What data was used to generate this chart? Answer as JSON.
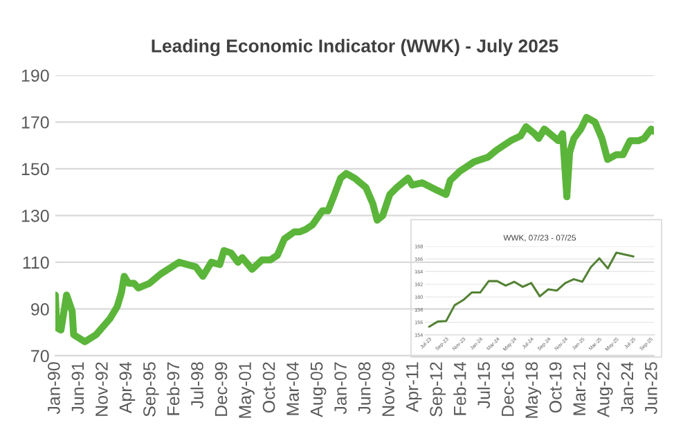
{
  "chart_data": [
    {
      "type": "line",
      "title": "Leading Economic Indicator (WWK) - July 2025",
      "color": "#5bb53a",
      "grid": "y",
      "x": [
        "1990-01",
        "1990-02",
        "1990-05",
        "1990-09",
        "1991-01",
        "1991-02",
        "1991-10",
        "1992-06",
        "1993-04",
        "1993-09",
        "1993-12",
        "1994-02",
        "1994-05",
        "1994-09",
        "1994-12",
        "1995-08",
        "1996-04",
        "1997-05",
        "1998-05",
        "1998-10",
        "1999-04",
        "1999-10",
        "2000-01",
        "2000-06",
        "2000-11",
        "2001-02",
        "2001-09",
        "2002-04",
        "2002-10",
        "2003-03",
        "2003-08",
        "2004-03",
        "2004-07",
        "2004-11",
        "2005-04",
        "2005-11",
        "2006-03",
        "2006-07",
        "2006-12",
        "2007-04",
        "2007-10",
        "2008-06",
        "2008-11",
        "2009-02",
        "2009-06",
        "2009-11",
        "2010-04",
        "2010-12",
        "2011-03",
        "2011-10",
        "2012-08",
        "2013-03",
        "2013-06",
        "2014-01",
        "2014-11",
        "2015-09",
        "2016-03",
        "2017-01",
        "2017-08",
        "2017-12",
        "2018-06",
        "2018-09",
        "2019-01",
        "2019-07",
        "2019-11",
        "2020-02",
        "2020-05",
        "2020-07",
        "2020-10",
        "2021-03",
        "2021-07",
        "2022-01",
        "2022-06",
        "2022-10",
        "2023-04",
        "2023-09",
        "2024-02",
        "2024-08",
        "2024-12",
        "2025-05",
        "2025-07"
      ],
      "values": [
        96,
        82,
        81,
        96,
        89,
        79,
        76,
        79,
        86,
        91,
        97,
        104,
        101,
        101,
        99,
        101,
        105,
        110,
        108,
        104,
        110,
        109,
        115,
        114,
        110,
        112,
        107,
        111,
        111,
        113,
        120,
        123,
        123,
        124,
        126,
        132,
        132,
        138,
        146,
        148,
        146,
        142,
        135,
        128,
        130,
        139,
        142,
        146,
        143,
        144,
        141,
        139,
        145,
        149,
        153,
        155,
        158,
        162,
        164,
        168,
        165,
        163,
        167,
        164,
        162,
        165,
        138,
        157,
        163,
        167,
        172,
        170,
        163,
        154,
        156,
        156,
        162,
        162,
        163,
        167,
        166
      ],
      "xlim": [
        "1990-01",
        "2025-07"
      ],
      "xticks": [
        {
          "value": "1990-01",
          "label": "Jan-90"
        },
        {
          "value": "1991-06",
          "label": "Jun-91"
        },
        {
          "value": "1992-11",
          "label": "Nov-92"
        },
        {
          "value": "1994-04",
          "label": "Apr-94"
        },
        {
          "value": "1995-09",
          "label": "Sep-95"
        },
        {
          "value": "1997-02",
          "label": "Feb-97"
        },
        {
          "value": "1998-07",
          "label": "Jul-98"
        },
        {
          "value": "1999-12",
          "label": "Dec-99"
        },
        {
          "value": "2001-05",
          "label": "May-01"
        },
        {
          "value": "2002-10",
          "label": "Oct-02"
        },
        {
          "value": "2004-03",
          "label": "Mar-04"
        },
        {
          "value": "2005-08",
          "label": "Aug-05"
        },
        {
          "value": "2007-01",
          "label": "Jan-07"
        },
        {
          "value": "2008-06",
          "label": "Jun-08"
        },
        {
          "value": "2009-11",
          "label": "Nov-09"
        },
        {
          "value": "2011-04",
          "label": "Apr-11"
        },
        {
          "value": "2012-09",
          "label": "Sep-12"
        },
        {
          "value": "2014-02",
          "label": "Feb-14"
        },
        {
          "value": "2015-07",
          "label": "Jul-15"
        },
        {
          "value": "2016-12",
          "label": "Dec-16"
        },
        {
          "value": "2018-05",
          "label": "May-18"
        },
        {
          "value": "2019-10",
          "label": "Oct-19"
        },
        {
          "value": "2021-03",
          "label": "Mar-21"
        },
        {
          "value": "2022-08",
          "label": "Aug-22"
        },
        {
          "value": "2024-01",
          "label": "Jan-24"
        },
        {
          "value": "2025-06",
          "label": "Jun-25"
        }
      ],
      "ylim": [
        70,
        190
      ],
      "yticks": [
        70,
        90,
        110,
        130,
        150,
        170,
        190
      ]
    },
    {
      "type": "line",
      "title": "WWK, 07/23 - 07/25",
      "color": "#548235",
      "grid": "y",
      "categories": [
        "Jul-23",
        null,
        "Sep-23",
        null,
        "Nov-23",
        null,
        "Jan-24",
        null,
        "Mar-24",
        null,
        "May-24",
        null,
        "Jul-24",
        null,
        "Sep-24",
        null,
        "Nov-24",
        null,
        "Jan-25",
        null,
        "Mar-25",
        null,
        "May-25",
        null,
        "Jul-25",
        null,
        "Sep-25"
      ],
      "values": [
        155.3,
        156.1,
        156.2,
        158.7,
        159.5,
        160.7,
        160.7,
        162.5,
        162.5,
        161.8,
        162.4,
        161.6,
        162.2,
        160.1,
        161.2,
        161,
        162.2,
        162.8,
        162.4,
        164.7,
        166.1,
        164.5,
        167,
        166.7,
        166.4,
        null,
        null
      ],
      "ylim": [
        154,
        168
      ],
      "yticks": [
        154,
        156,
        158,
        160,
        162,
        164,
        166,
        168
      ]
    }
  ]
}
